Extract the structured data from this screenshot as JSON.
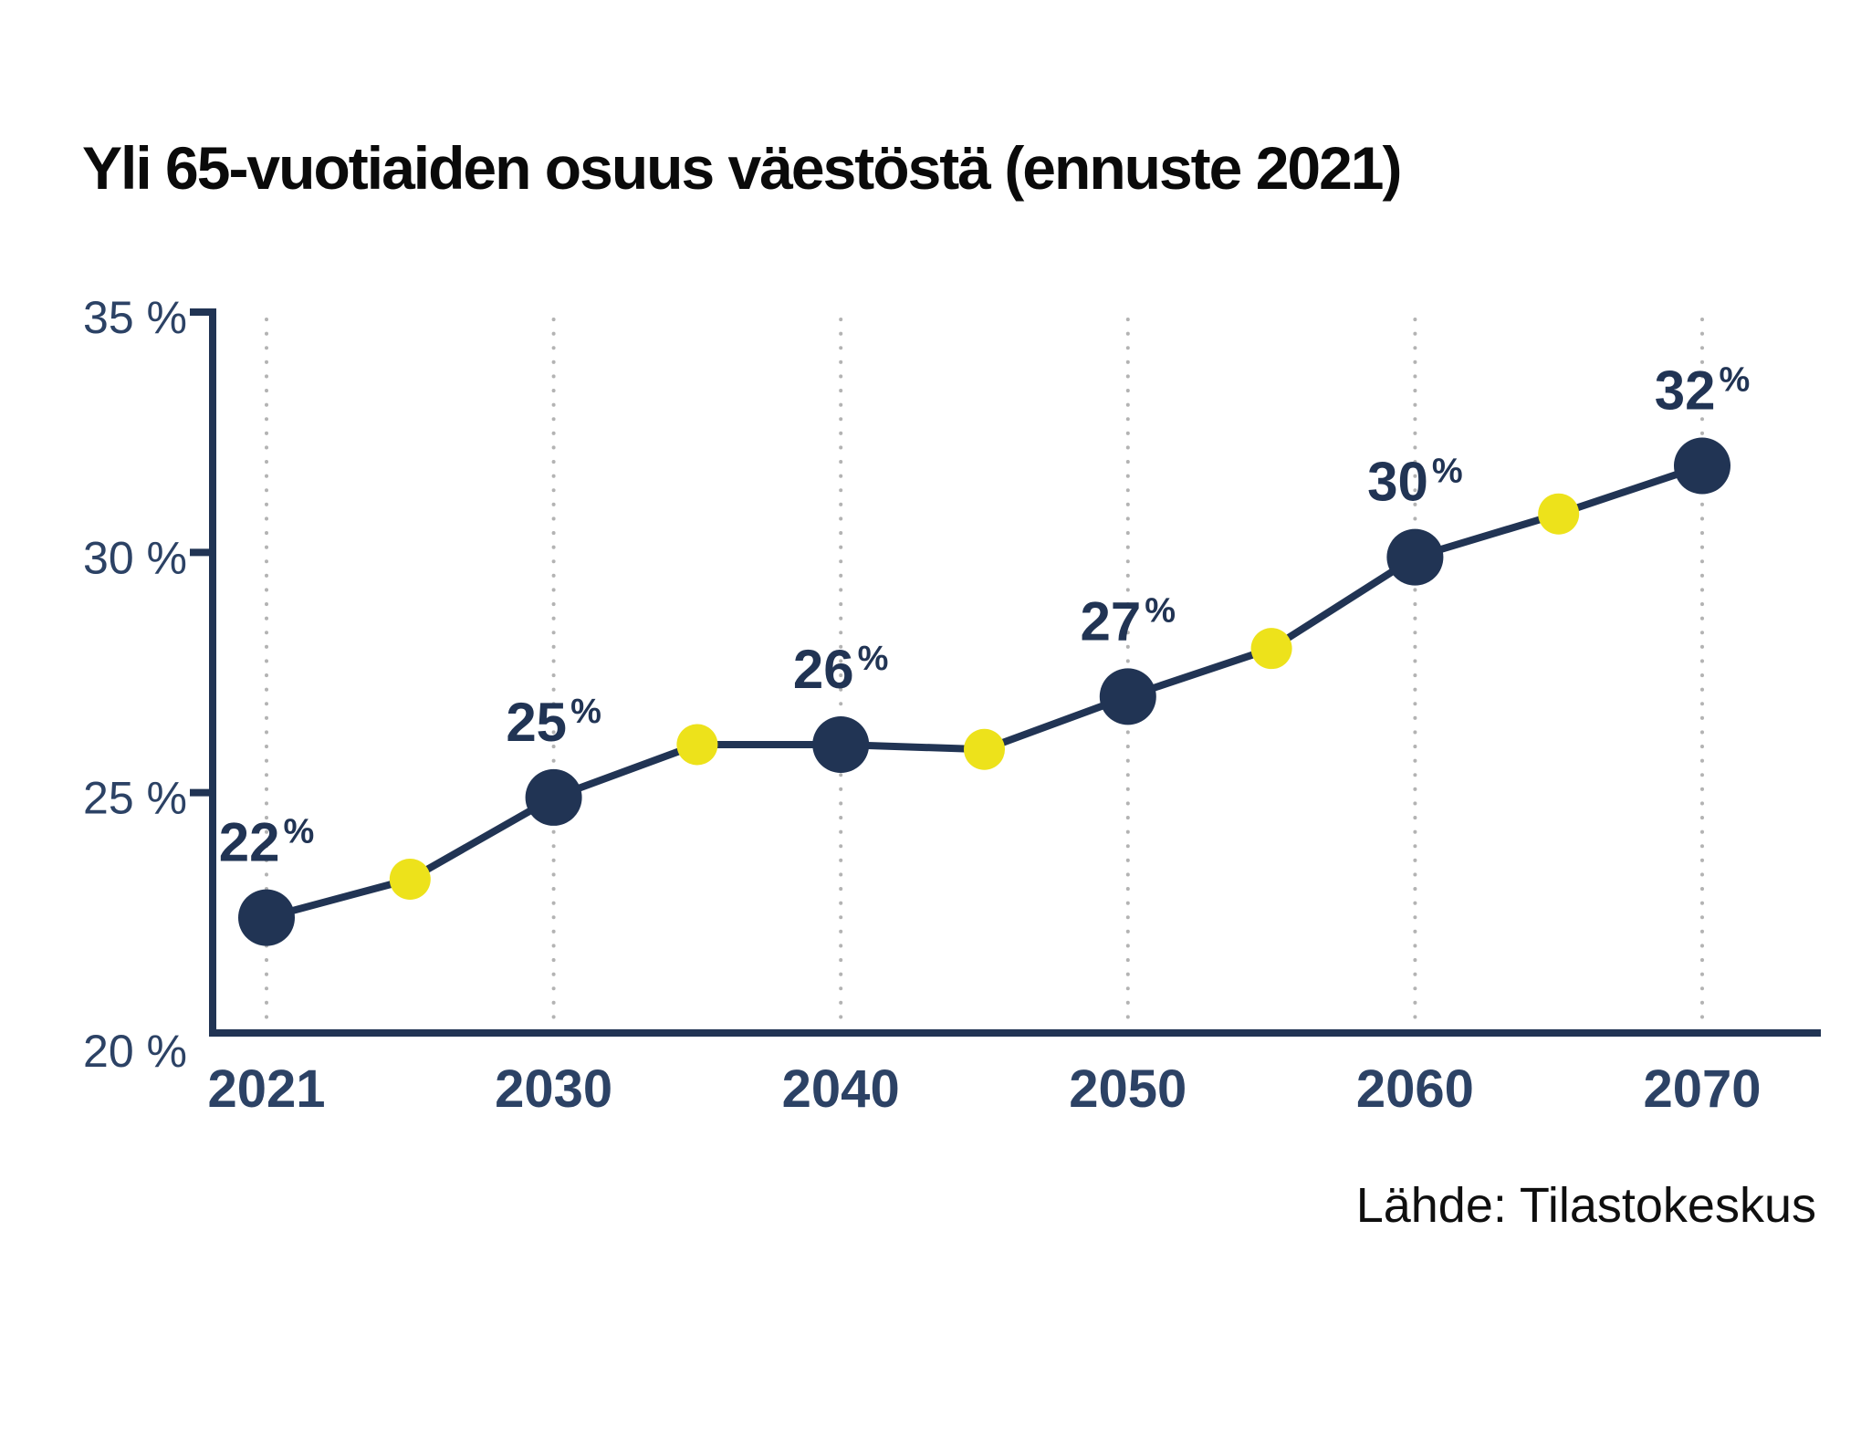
{
  "title": "Yli 65-vuotiaiden osuus väestöstä (ennuste 2021)",
  "source": "Lähde: Tilastokeskus",
  "colors": {
    "navy": "#213454",
    "yellow": "#EDE21B",
    "axis_label": "#2C4265",
    "grid": "#B3B3B3",
    "title_text": "#0A0A0A",
    "source_text": "#0F0F0F"
  },
  "chart_data": {
    "type": "line",
    "title": "Yli 65-vuotiaiden osuus väestöstä (ennuste 2021)",
    "xlabel": "",
    "ylabel": "",
    "ylim": [
      20,
      35
    ],
    "grid": "vertical-dotted-at-labeled-years",
    "legend": "none",
    "y_ticks": [
      {
        "label": "35 %",
        "value": 35
      },
      {
        "label": "30 %",
        "value": 30
      },
      {
        "label": "25 %",
        "value": 25
      },
      {
        "label": "20 %",
        "value": 20
      }
    ],
    "points": [
      {
        "year": 2021,
        "value": 22.4,
        "major": true,
        "label": "22",
        "label_suffix": "%"
      },
      {
        "year": 2025,
        "value": 23.2,
        "major": false
      },
      {
        "year": 2030,
        "value": 24.9,
        "major": true,
        "label": "25",
        "label_suffix": "%"
      },
      {
        "year": 2035,
        "value": 26.0,
        "major": false
      },
      {
        "year": 2040,
        "value": 26.0,
        "major": true,
        "label": "26",
        "label_suffix": "%"
      },
      {
        "year": 2045,
        "value": 25.9,
        "major": false
      },
      {
        "year": 2050,
        "value": 27.0,
        "major": true,
        "label": "27",
        "label_suffix": "%"
      },
      {
        "year": 2055,
        "value": 28.0,
        "major": false
      },
      {
        "year": 2060,
        "value": 29.9,
        "major": true,
        "label": "30",
        "label_suffix": "%"
      },
      {
        "year": 2065,
        "value": 30.8,
        "major": false
      },
      {
        "year": 2070,
        "value": 31.8,
        "major": true,
        "label": "32",
        "label_suffix": "%"
      }
    ],
    "series_note": "major points = large navy dots with bold value labels and x-axis year labels; minor points = small yellow dots (intermediate 5-year forecast values)"
  }
}
